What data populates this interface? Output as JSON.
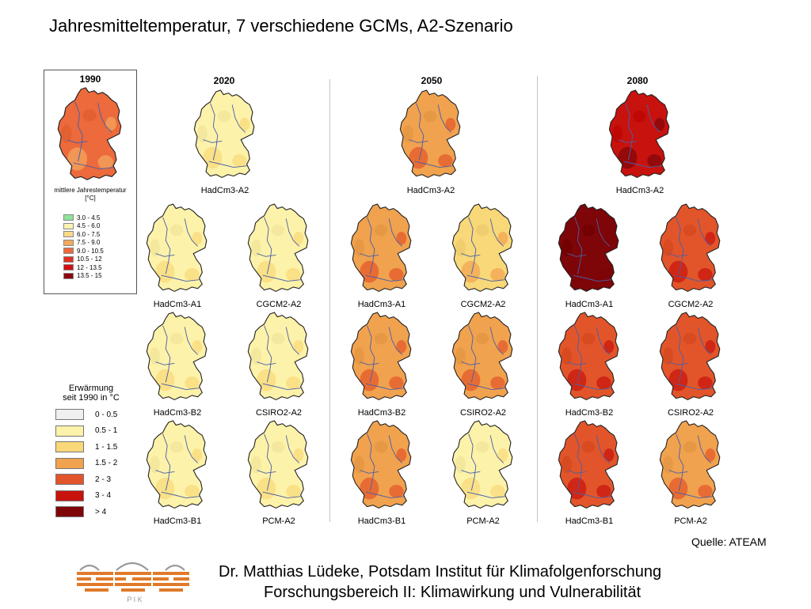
{
  "title": "Jahresmitteltemperatur, 7 verschiedene GCMs, A2-Szenario",
  "reference": {
    "year": "1990",
    "caption_line1": "mittlere Jahrestemperatur",
    "caption_line2": "[°C]",
    "legend": [
      {
        "label": "3.0 - 4.5",
        "color": "#8fe39a"
      },
      {
        "label": "4.5 - 6.0",
        "color": "#fcf3b4"
      },
      {
        "label": "6.0 - 7.5",
        "color": "#f8d98a"
      },
      {
        "label": "7.5 - 9.0",
        "color": "#f3a95e"
      },
      {
        "label": "9.0 - 10.5",
        "color": "#ec6a3c"
      },
      {
        "label": "10.5 - 12",
        "color": "#e23023"
      },
      {
        "label": "12 - 13.5",
        "color": "#d00f12"
      },
      {
        "label": "13.5 - 15",
        "color": "#8c0810"
      }
    ]
  },
  "years": [
    "2020",
    "2050",
    "2080"
  ],
  "warming_legend": {
    "title_line1": "Erwärmung",
    "title_line2": "seit 1990 in °C",
    "items": [
      {
        "label": "0 - 0.5",
        "color": "#efefef"
      },
      {
        "label": "0.5 - 1",
        "color": "#fdf2a9"
      },
      {
        "label": "1 - 1.5",
        "color": "#f8d878"
      },
      {
        "label": "1.5 - 2",
        "color": "#f1a24e"
      },
      {
        "label": "2 - 3",
        "color": "#e2552a"
      },
      {
        "label": "3 - 4",
        "color": "#c8120e"
      },
      {
        "label": "> 4",
        "color": "#7e0508"
      }
    ]
  },
  "maps": {
    "y2020": [
      {
        "label": "HadCm3-A2",
        "class": "0.5 - 1"
      },
      {
        "label": "HadCm3-A1",
        "class": "0.5 - 1"
      },
      {
        "label": "CGCM2-A2",
        "class": "0.5 - 1"
      },
      {
        "label": "HadCm3-B2",
        "class": "0.5 - 1"
      },
      {
        "label": "CSIRO2-A2",
        "class": "0.5 - 1"
      },
      {
        "label": "HadCm3-B1",
        "class": "0.5 - 1"
      },
      {
        "label": "PCM-A2",
        "class": "0.5 - 1"
      }
    ],
    "y2050": [
      {
        "label": "HadCm3-A2",
        "class": "1.5 - 2"
      },
      {
        "label": "HadCm3-A1",
        "class": "1.5 - 2"
      },
      {
        "label": "CGCM2-A2",
        "class": "1 - 1.5"
      },
      {
        "label": "HadCm3-B2",
        "class": "1.5 - 2"
      },
      {
        "label": "CSIRO2-A2",
        "class": "1.5 - 2"
      },
      {
        "label": "HadCm3-B1",
        "class": "1.5 - 2"
      },
      {
        "label": "PCM-A2",
        "class": "0.5 - 1"
      }
    ],
    "y2080": [
      {
        "label": "HadCm3-A2",
        "class": "3 - 4"
      },
      {
        "label": "HadCm3-A1",
        "class": "> 4"
      },
      {
        "label": "CGCM2-A2",
        "class": "2 - 3"
      },
      {
        "label": "HadCm3-B2",
        "class": "2 - 3"
      },
      {
        "label": "CSIRO2-A2",
        "class": "2 - 3"
      },
      {
        "label": "HadCm3-B1",
        "class": "2 - 3"
      },
      {
        "label": "PCM-A2",
        "class": "1.5 - 2"
      }
    ]
  },
  "source": "Quelle: ATEAM",
  "footer": {
    "author": "Dr. Matthias Lüdeke, Potsdam Institut für Klimafolgenforschung",
    "department": "Forschungsbereich II: Klimawirkung und Vulnerabilität",
    "logo_text": "P  I  K"
  }
}
